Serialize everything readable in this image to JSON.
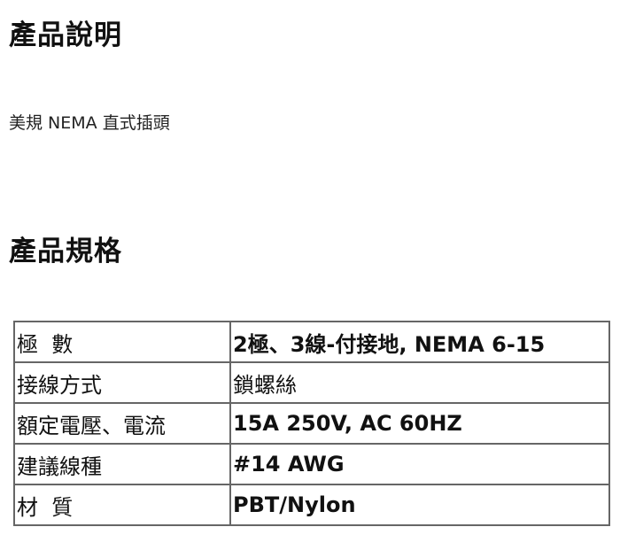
{
  "description_heading": "產品說明",
  "description_text": "美規 NEMA 直式插頭",
  "spec_heading": "產品規格",
  "specs": [
    {
      "label": "極  數",
      "value": "2極、3線-付接地, NEMA 6-15"
    },
    {
      "label": "接線方式",
      "value": "鎖螺絲"
    },
    {
      "label": "額定電壓、電流",
      "value": "15A 250V, AC 60HZ"
    },
    {
      "label": "建議線種",
      "value": "#14 AWG"
    },
    {
      "label": "材  質",
      "value": "PBT/Nylon"
    }
  ]
}
